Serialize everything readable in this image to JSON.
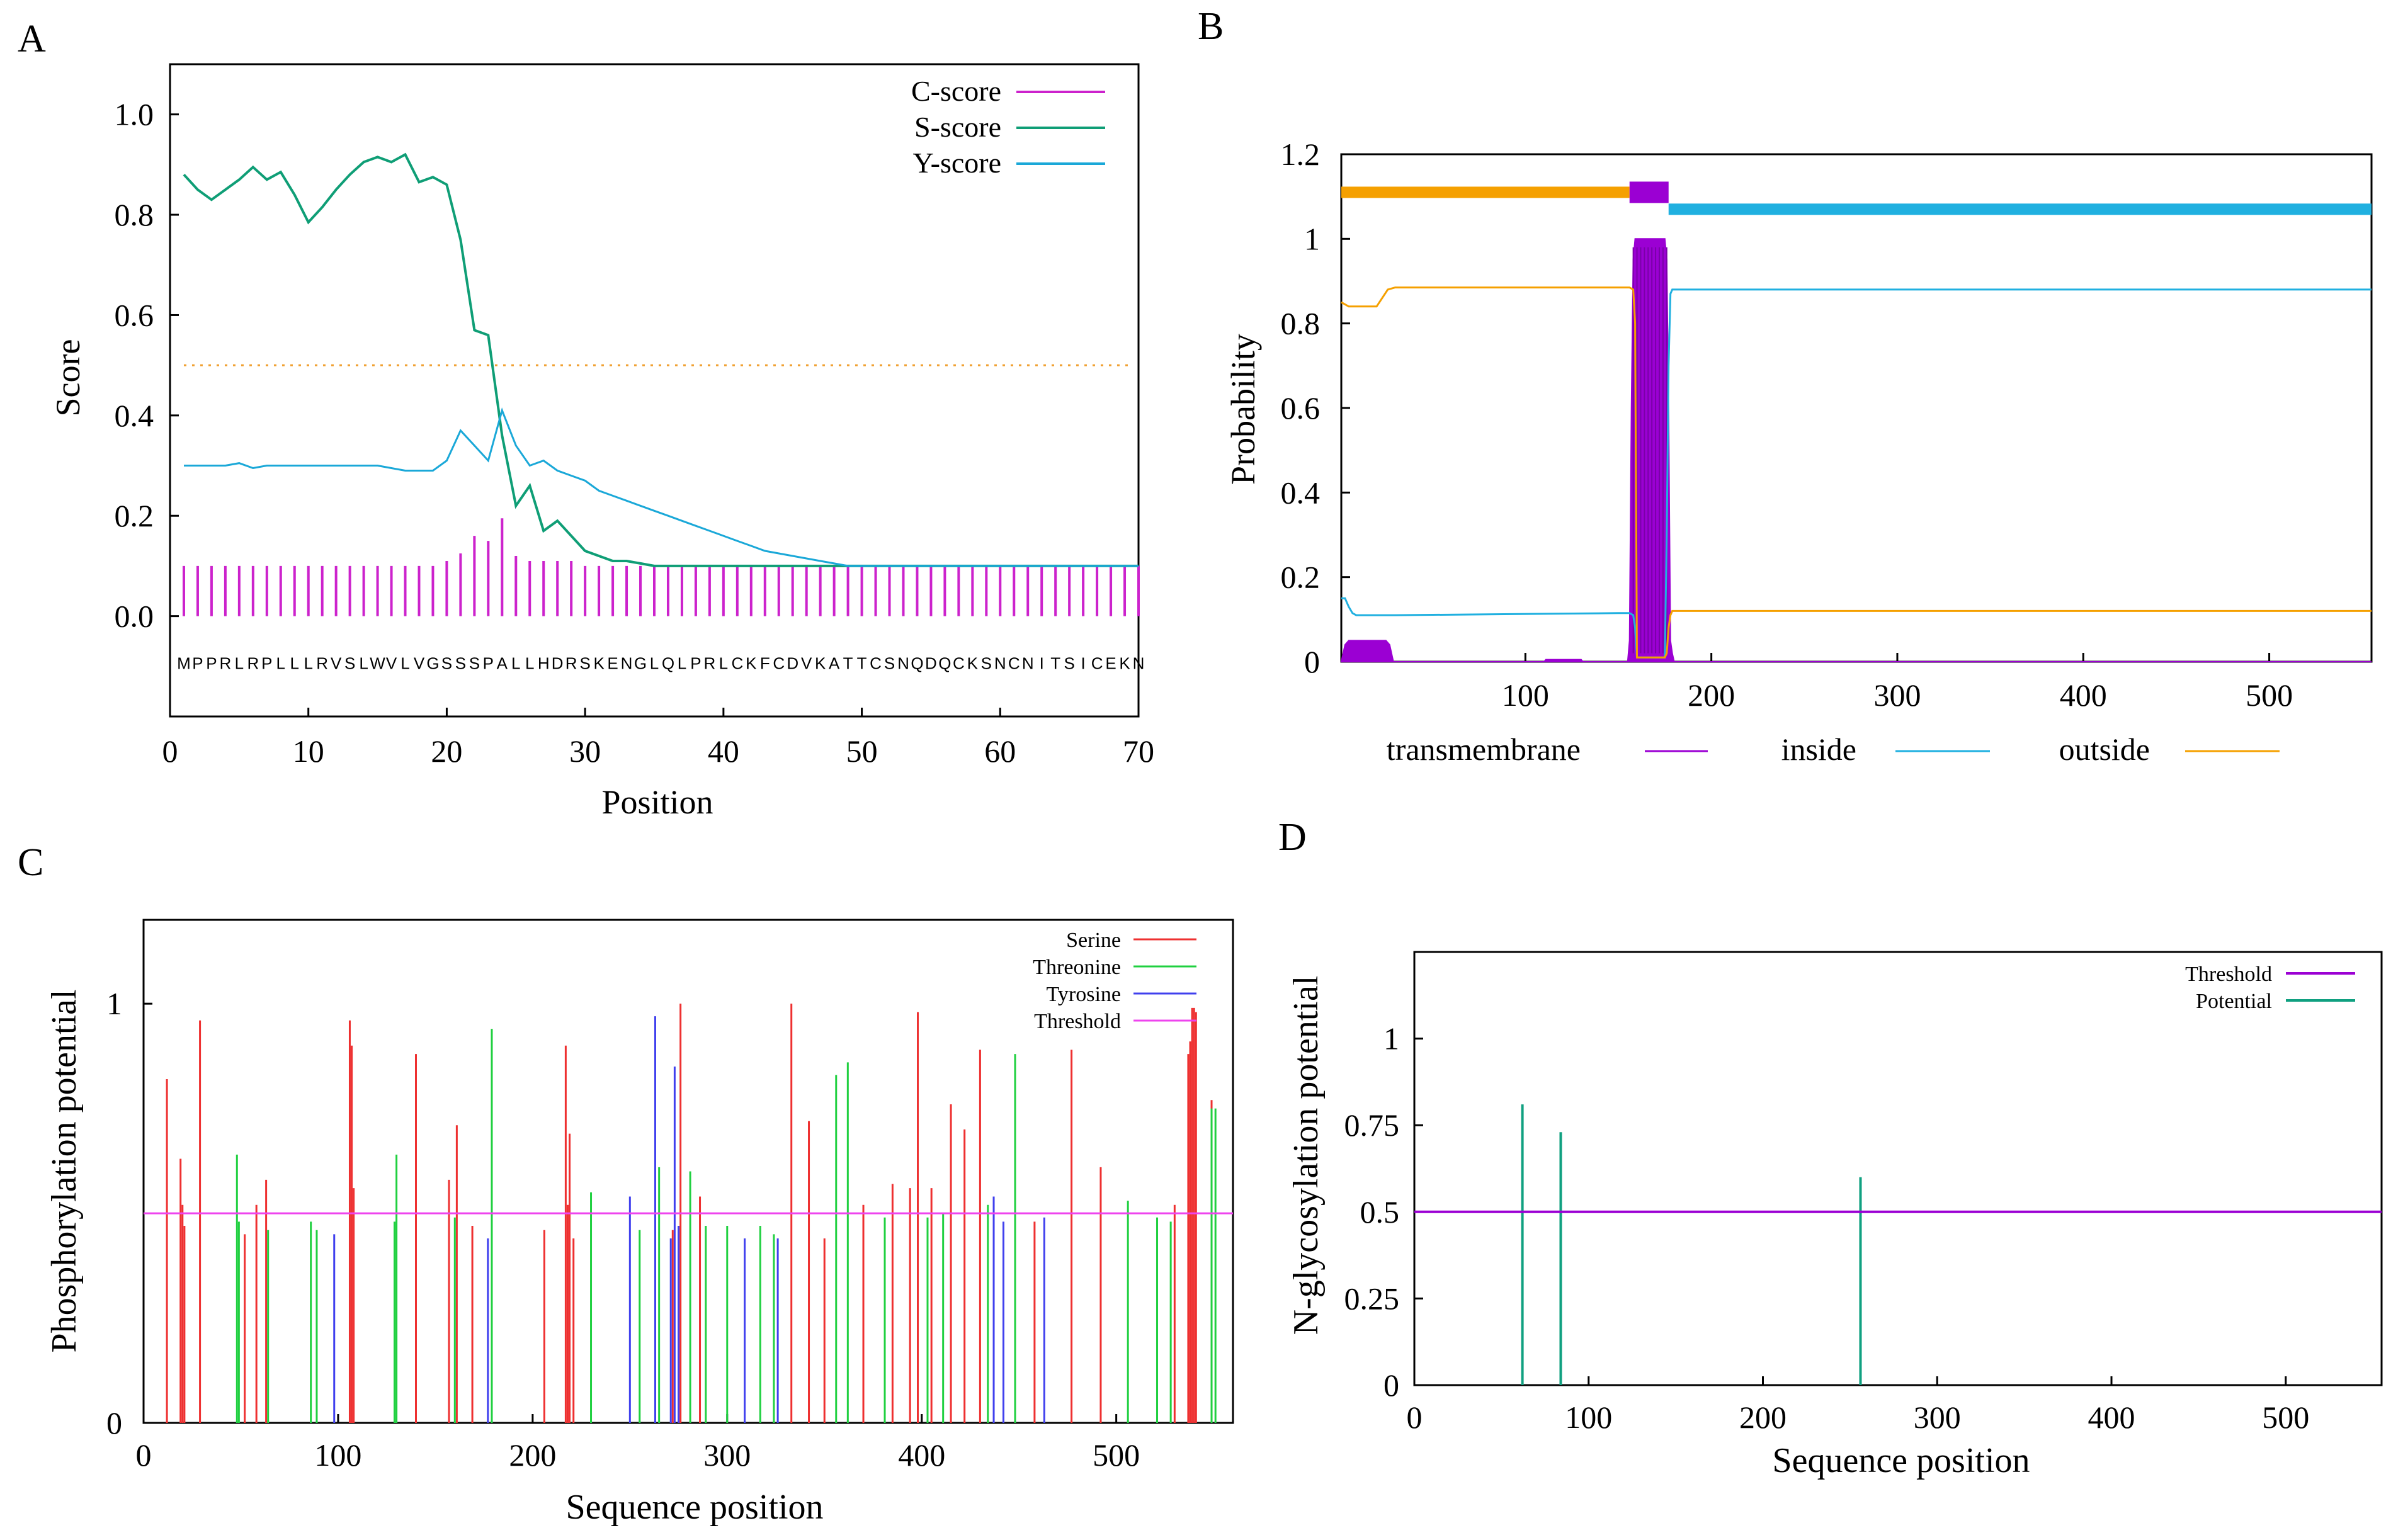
{
  "panels": {
    "A": {
      "letter": "A"
    },
    "B": {
      "letter": "B"
    },
    "C": {
      "letter": "C"
    },
    "D": {
      "letter": "D"
    }
  },
  "colors": {
    "c_score": "#cc22cc",
    "s_score": "#0f9e76",
    "y_score": "#1aa8d8",
    "threshold_a": "#f0a030",
    "tm": "#9b00d3",
    "inside": "#20b0e0",
    "outside": "#f5a000",
    "serine": "#ee3030",
    "threonine": "#20d040",
    "tyrosine": "#4040ee",
    "threshold_c": "#ee44ee",
    "threshold_d": "#9b00d3",
    "potential": "#10a080"
  },
  "chart_data": [
    {
      "panel": "A",
      "type": "line",
      "xlabel": "Position",
      "ylabel": "Score",
      "xlim": [
        0,
        70
      ],
      "ylim": [
        -0.2,
        1.1
      ],
      "xticks": [
        "0",
        "10",
        "20",
        "30",
        "40",
        "50",
        "60",
        "70"
      ],
      "yticks": [
        "0.0",
        "0.2",
        "0.4",
        "0.6",
        "0.8",
        "1.0"
      ],
      "legend": [
        "C-score",
        "S-score",
        "Y-score"
      ],
      "legend_position": "top-right",
      "threshold": 0.5,
      "sequence": "MPPRLRPLLLRVSLWVLVGSSSPALLHDRSKENGLQLPRLCKFCDVKATTCSNQDQCKSNCNITSICEKN",
      "series": [
        {
          "name": "S-score",
          "x": [
            1,
            2,
            3,
            4,
            5,
            6,
            7,
            8,
            9,
            10,
            11,
            12,
            13,
            14,
            15,
            16,
            17,
            18,
            19,
            20,
            21,
            22,
            23,
            24,
            25,
            26,
            27,
            28,
            29,
            30,
            31,
            32,
            33,
            34,
            35,
            36,
            37,
            38,
            39,
            40,
            41,
            42,
            43,
            44,
            45,
            46,
            47,
            48,
            49,
            50,
            51,
            52,
            53,
            54,
            55,
            56,
            57,
            58,
            59,
            60,
            61,
            62,
            63,
            64,
            65,
            66,
            67,
            68,
            69,
            70
          ],
          "values": [
            0.88,
            0.85,
            0.83,
            0.85,
            0.87,
            0.895,
            0.87,
            0.885,
            0.84,
            0.785,
            0.815,
            0.85,
            0.88,
            0.905,
            0.915,
            0.905,
            0.92,
            0.865,
            0.875,
            0.86,
            0.75,
            0.57,
            0.56,
            0.36,
            0.22,
            0.26,
            0.17,
            0.19,
            0.16,
            0.13,
            0.12,
            0.11,
            0.11,
            0.105,
            0.1,
            0.1,
            0.1,
            0.1,
            0.1,
            0.1,
            0.1,
            0.1,
            0.1,
            0.1,
            0.1,
            0.1,
            0.1,
            0.1,
            0.1,
            0.1,
            0.1,
            0.1,
            0.1,
            0.1,
            0.1,
            0.1,
            0.1,
            0.1,
            0.1,
            0.1,
            0.1,
            0.1,
            0.1,
            0.1,
            0.1,
            0.1,
            0.1,
            0.1,
            0.1,
            0.1
          ]
        },
        {
          "name": "Y-score",
          "x": [
            1,
            2,
            3,
            4,
            5,
            6,
            7,
            8,
            9,
            10,
            11,
            12,
            13,
            14,
            15,
            16,
            17,
            18,
            19,
            20,
            21,
            22,
            23,
            24,
            25,
            26,
            27,
            28,
            29,
            30,
            31,
            32,
            33,
            34,
            35,
            36,
            37,
            38,
            39,
            40,
            41,
            42,
            43,
            44,
            45,
            46,
            47,
            48,
            49,
            50,
            51,
            52,
            53,
            54,
            55,
            56,
            57,
            58,
            59,
            60,
            61,
            62,
            63,
            64,
            65,
            66,
            67,
            68,
            69,
            70
          ],
          "values": [
            0.3,
            0.3,
            0.3,
            0.3,
            0.305,
            0.295,
            0.3,
            0.3,
            0.3,
            0.3,
            0.3,
            0.3,
            0.3,
            0.3,
            0.3,
            0.295,
            0.29,
            0.29,
            0.29,
            0.31,
            0.37,
            0.34,
            0.31,
            0.41,
            0.34,
            0.3,
            0.31,
            0.29,
            0.28,
            0.27,
            0.25,
            0.24,
            0.23,
            0.22,
            0.21,
            0.2,
            0.19,
            0.18,
            0.17,
            0.16,
            0.15,
            0.14,
            0.13,
            0.125,
            0.12,
            0.115,
            0.11,
            0.105,
            0.1,
            0.1,
            0.1,
            0.1,
            0.1,
            0.1,
            0.1,
            0.1,
            0.1,
            0.1,
            0.1,
            0.1,
            0.1,
            0.1,
            0.1,
            0.1,
            0.1,
            0.1,
            0.1,
            0.1,
            0.1,
            0.1
          ]
        },
        {
          "name": "C-score",
          "x": [
            1,
            2,
            3,
            4,
            5,
            6,
            7,
            8,
            9,
            10,
            11,
            12,
            13,
            14,
            15,
            16,
            17,
            18,
            19,
            20,
            21,
            22,
            23,
            24,
            25,
            26,
            27,
            28,
            29,
            30,
            31,
            32,
            33,
            34,
            35,
            36,
            37,
            38,
            39,
            40,
            41,
            42,
            43,
            44,
            45,
            46,
            47,
            48,
            49,
            50,
            51,
            52,
            53,
            54,
            55,
            56,
            57,
            58,
            59,
            60,
            61,
            62,
            63,
            64,
            65,
            66,
            67,
            68,
            69,
            70
          ],
          "values": [
            0.1,
            0.1,
            0.1,
            0.1,
            0.1,
            0.1,
            0.1,
            0.1,
            0.1,
            0.1,
            0.1,
            0.1,
            0.1,
            0.1,
            0.1,
            0.1,
            0.1,
            0.1,
            0.1,
            0.11,
            0.125,
            0.16,
            0.15,
            0.195,
            0.12,
            0.11,
            0.11,
            0.11,
            0.11,
            0.1,
            0.1,
            0.1,
            0.1,
            0.1,
            0.1,
            0.1,
            0.1,
            0.1,
            0.1,
            0.1,
            0.1,
            0.1,
            0.1,
            0.1,
            0.1,
            0.1,
            0.1,
            0.1,
            0.1,
            0.1,
            0.1,
            0.1,
            0.1,
            0.1,
            0.1,
            0.1,
            0.1,
            0.1,
            0.1,
            0.1,
            0.1,
            0.1,
            0.1,
            0.1,
            0.1,
            0.1,
            0.1,
            0.1,
            0.1,
            0.1
          ]
        }
      ]
    },
    {
      "panel": "B",
      "type": "line",
      "xlabel": "",
      "ylabel": "Probability",
      "xlim": [
        1,
        555
      ],
      "ylim": [
        0,
        1.2
      ],
      "xticks": [
        "100",
        "200",
        "300",
        "400",
        "500"
      ],
      "yticks": [
        "0",
        "0.2",
        "0.4",
        "0.6",
        "0.8",
        "1",
        "1.2"
      ],
      "legend": [
        "transmembrane",
        "inside",
        "outside"
      ],
      "legend_position": "bottom",
      "topology": [
        {
          "label": "outside",
          "start": 1,
          "end": 156
        },
        {
          "label": "transmembrane",
          "start": 156,
          "end": 177
        },
        {
          "label": "inside",
          "start": 177,
          "end": 555
        }
      ],
      "series": [
        {
          "name": "transmembrane",
          "x": [
            1,
            2,
            3,
            5,
            25,
            27,
            29,
            110,
            111,
            130,
            131,
            155,
            156,
            157,
            158,
            159,
            160,
            175,
            176,
            177,
            178,
            179,
            180,
            181,
            182,
            555
          ],
          "values": [
            0,
            0.02,
            0.04,
            0.05,
            0.05,
            0.04,
            0,
            0,
            0.005,
            0.005,
            0,
            0,
            0.05,
            0.6,
            0.95,
            1,
            1,
            1,
            0.95,
            0.6,
            0.05,
            0.02,
            0,
            0,
            0,
            0
          ]
        },
        {
          "name": "inside",
          "x": [
            1,
            3,
            5,
            7,
            9,
            30,
            150,
            156,
            158,
            159,
            160,
            175,
            176,
            177,
            178,
            179,
            180,
            185,
            555
          ],
          "values": [
            0.15,
            0.15,
            0.13,
            0.115,
            0.11,
            0.11,
            0.115,
            0.115,
            0.11,
            0.08,
            0.01,
            0.01,
            0.3,
            0.7,
            0.87,
            0.88,
            0.88,
            0.88,
            0.88
          ]
        },
        {
          "name": "outside",
          "x": [
            1,
            5,
            20,
            26,
            30,
            150,
            156,
            158,
            159,
            160,
            175,
            176,
            177,
            178,
            179,
            180,
            185,
            555
          ],
          "values": [
            0.85,
            0.84,
            0.84,
            0.88,
            0.885,
            0.885,
            0.885,
            0.88,
            0.8,
            0.01,
            0.01,
            0.02,
            0.08,
            0.11,
            0.12,
            0.12,
            0.12,
            0.12
          ]
        }
      ]
    },
    {
      "panel": "C",
      "type": "bar",
      "xlabel": "Sequence position",
      "ylabel": "Phosphorylation potential",
      "xlim": [
        0,
        560
      ],
      "ylim": [
        0,
        1.2
      ],
      "xticks": [
        "0",
        "100",
        "200",
        "300",
        "400",
        "500"
      ],
      "yticks": [
        "0",
        "1"
      ],
      "legend": [
        "Serine",
        "Threonine",
        "Tyrosine",
        "Threshold"
      ],
      "legend_position": "top-right",
      "threshold": 0.5,
      "series": [
        {
          "name": "Serine",
          "x": [
            12,
            19,
            20,
            21,
            29,
            52,
            58,
            63,
            106,
            107,
            108,
            140,
            157,
            161,
            169,
            206,
            217,
            218,
            219,
            221,
            272,
            276,
            286,
            333,
            342,
            350,
            370,
            385,
            394,
            398,
            405,
            415,
            422,
            430,
            458,
            477,
            492,
            530,
            537,
            538,
            539,
            540,
            541,
            549
          ],
          "values": [
            0.82,
            0.63,
            0.52,
            0.47,
            0.96,
            0.45,
            0.52,
            0.58,
            0.96,
            0.9,
            0.56,
            0.88,
            0.58,
            0.71,
            0.47,
            0.46,
            0.9,
            0.52,
            0.69,
            0.44,
            0.46,
            1.0,
            0.54,
            1.0,
            0.72,
            0.44,
            0.52,
            0.57,
            0.56,
            0.98,
            0.56,
            0.76,
            0.7,
            0.89,
            0.48,
            0.89,
            0.61,
            0.52,
            0.88,
            0.91,
            0.99,
            0.99,
            0.98,
            0.77
          ]
        },
        {
          "name": "Threonine",
          "x": [
            48,
            49,
            64,
            86,
            89,
            129,
            130,
            160,
            179,
            230,
            255,
            263,
            265,
            281,
            289,
            300,
            317,
            324,
            356,
            362,
            381,
            403,
            411,
            434,
            448,
            506,
            521,
            528,
            549,
            551
          ],
          "values": [
            0.64,
            0.48,
            0.46,
            0.48,
            0.46,
            0.48,
            0.64,
            0.49,
            0.94,
            0.55,
            0.46,
            0.49,
            0.61,
            0.6,
            0.47,
            0.47,
            0.47,
            0.45,
            0.83,
            0.86,
            0.49,
            0.49,
            0.5,
            0.52,
            0.88,
            0.53,
            0.49,
            0.48,
            0.75,
            0.75
          ]
        },
        {
          "name": "Tyrosine",
          "x": [
            98,
            177,
            250,
            263,
            271,
            273,
            275,
            309,
            326,
            437,
            442,
            463
          ],
          "values": [
            0.45,
            0.44,
            0.54,
            0.97,
            0.44,
            0.85,
            0.47,
            0.44,
            0.44,
            0.54,
            0.48,
            0.49
          ]
        }
      ]
    },
    {
      "panel": "D",
      "type": "bar",
      "xlabel": "Sequence position",
      "ylabel": "N-glycosylation potential",
      "xlim": [
        0,
        555
      ],
      "ylim": [
        0,
        1.25
      ],
      "xticks": [
        "0",
        "100",
        "200",
        "300",
        "400",
        "500"
      ],
      "yticks": [
        "0",
        "0.25",
        "0.5",
        "0.75",
        "1"
      ],
      "legend": [
        "Threshold",
        "Potential"
      ],
      "legend_position": "top-right",
      "threshold": 0.5,
      "series": [
        {
          "name": "Potential",
          "x": [
            62,
            84,
            256
          ],
          "values": [
            0.81,
            0.73,
            0.6
          ]
        }
      ]
    }
  ]
}
